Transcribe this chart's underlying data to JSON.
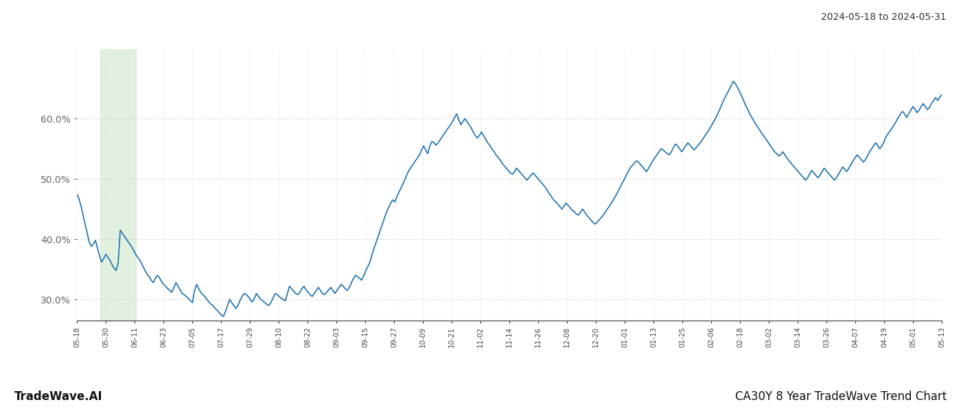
{
  "title_top_right": "2024-05-18 to 2024-05-31",
  "title_bottom_left": "TradeWave.AI",
  "title_bottom_right": "CA30Y 8 Year TradeWave Trend Chart",
  "line_color": "#1a6faf",
  "highlight_color": "#d6ecd2",
  "highlight_alpha": 0.7,
  "background_color": "#ffffff",
  "grid_color": "#cccccc",
  "ylim": [
    0.265,
    0.715
  ],
  "yticks": [
    0.3,
    0.4,
    0.5,
    0.6
  ],
  "x_labels": [
    "05-18",
    "05-30",
    "06-11",
    "06-23",
    "07-05",
    "07-17",
    "07-29",
    "08-10",
    "08-22",
    "09-03",
    "09-15",
    "09-27",
    "10-09",
    "10-21",
    "11-02",
    "11-14",
    "11-26",
    "12-08",
    "12-20",
    "01-01",
    "01-13",
    "01-25",
    "02-06",
    "02-18",
    "03-02",
    "03-14",
    "03-26",
    "04-07",
    "04-19",
    "05-01",
    "05-13"
  ],
  "highlight_xstart": 0.027,
  "highlight_xend": 0.068,
  "n_points": 420,
  "y_values": [
    0.474,
    0.468,
    0.455,
    0.44,
    0.425,
    0.41,
    0.395,
    0.388,
    0.392,
    0.398,
    0.385,
    0.372,
    0.362,
    0.368,
    0.375,
    0.37,
    0.365,
    0.358,
    0.352,
    0.348,
    0.36,
    0.415,
    0.41,
    0.405,
    0.4,
    0.395,
    0.39,
    0.385,
    0.378,
    0.372,
    0.368,
    0.362,
    0.355,
    0.348,
    0.342,
    0.338,
    0.332,
    0.328,
    0.335,
    0.34,
    0.336,
    0.33,
    0.325,
    0.322,
    0.318,
    0.315,
    0.312,
    0.32,
    0.328,
    0.322,
    0.316,
    0.31,
    0.308,
    0.305,
    0.302,
    0.298,
    0.295,
    0.315,
    0.325,
    0.318,
    0.312,
    0.308,
    0.305,
    0.3,
    0.296,
    0.292,
    0.29,
    0.285,
    0.282,
    0.278,
    0.274,
    0.272,
    0.28,
    0.29,
    0.3,
    0.295,
    0.29,
    0.285,
    0.29,
    0.298,
    0.305,
    0.31,
    0.308,
    0.305,
    0.3,
    0.296,
    0.302,
    0.31,
    0.305,
    0.3,
    0.298,
    0.295,
    0.292,
    0.29,
    0.295,
    0.302,
    0.31,
    0.308,
    0.305,
    0.302,
    0.3,
    0.298,
    0.31,
    0.322,
    0.318,
    0.314,
    0.31,
    0.308,
    0.312,
    0.318,
    0.322,
    0.316,
    0.312,
    0.308,
    0.305,
    0.31,
    0.315,
    0.32,
    0.315,
    0.31,
    0.308,
    0.312,
    0.316,
    0.32,
    0.315,
    0.31,
    0.315,
    0.32,
    0.325,
    0.322,
    0.318,
    0.315,
    0.32,
    0.328,
    0.335,
    0.34,
    0.338,
    0.335,
    0.332,
    0.34,
    0.348,
    0.355,
    0.362,
    0.375,
    0.385,
    0.395,
    0.405,
    0.415,
    0.425,
    0.435,
    0.445,
    0.452,
    0.46,
    0.465,
    0.462,
    0.47,
    0.478,
    0.485,
    0.492,
    0.5,
    0.508,
    0.515,
    0.52,
    0.525,
    0.53,
    0.535,
    0.54,
    0.548,
    0.555,
    0.548,
    0.542,
    0.555,
    0.562,
    0.56,
    0.556,
    0.56,
    0.565,
    0.57,
    0.575,
    0.58,
    0.585,
    0.59,
    0.595,
    0.602,
    0.608,
    0.598,
    0.59,
    0.595,
    0.6,
    0.595,
    0.59,
    0.585,
    0.578,
    0.572,
    0.568,
    0.572,
    0.578,
    0.572,
    0.566,
    0.56,
    0.556,
    0.55,
    0.546,
    0.54,
    0.536,
    0.532,
    0.526,
    0.522,
    0.518,
    0.514,
    0.51,
    0.508,
    0.512,
    0.518,
    0.514,
    0.51,
    0.506,
    0.502,
    0.498,
    0.502,
    0.506,
    0.51,
    0.506,
    0.502,
    0.498,
    0.494,
    0.49,
    0.486,
    0.48,
    0.475,
    0.47,
    0.465,
    0.462,
    0.458,
    0.454,
    0.45,
    0.455,
    0.46,
    0.456,
    0.452,
    0.448,
    0.445,
    0.442,
    0.44,
    0.445,
    0.45,
    0.445,
    0.44,
    0.436,
    0.432,
    0.428,
    0.425,
    0.428,
    0.432,
    0.436,
    0.44,
    0.445,
    0.45,
    0.455,
    0.46,
    0.466,
    0.472,
    0.478,
    0.485,
    0.492,
    0.498,
    0.505,
    0.512,
    0.518,
    0.522,
    0.526,
    0.53,
    0.528,
    0.524,
    0.52,
    0.516,
    0.512,
    0.518,
    0.524,
    0.53,
    0.535,
    0.54,
    0.545,
    0.55,
    0.548,
    0.545,
    0.542,
    0.54,
    0.545,
    0.552,
    0.558,
    0.555,
    0.55,
    0.545,
    0.55,
    0.555,
    0.56,
    0.556,
    0.552,
    0.548,
    0.552,
    0.556,
    0.56,
    0.565,
    0.57,
    0.575,
    0.58,
    0.586,
    0.592,
    0.598,
    0.605,
    0.612,
    0.62,
    0.628,
    0.635,
    0.642,
    0.648,
    0.655,
    0.662,
    0.658,
    0.652,
    0.645,
    0.638,
    0.63,
    0.622,
    0.615,
    0.608,
    0.602,
    0.596,
    0.59,
    0.585,
    0.58,
    0.575,
    0.57,
    0.565,
    0.56,
    0.555,
    0.55,
    0.545,
    0.542,
    0.538,
    0.54,
    0.545,
    0.54,
    0.535,
    0.53,
    0.526,
    0.522,
    0.518,
    0.514,
    0.51,
    0.506,
    0.502,
    0.498,
    0.502,
    0.508,
    0.514,
    0.51,
    0.506,
    0.502,
    0.506,
    0.512,
    0.518,
    0.514,
    0.51,
    0.506,
    0.502,
    0.498,
    0.502,
    0.508,
    0.514,
    0.52,
    0.516,
    0.512,
    0.518,
    0.524,
    0.53,
    0.535,
    0.54,
    0.536,
    0.532,
    0.528,
    0.532,
    0.538,
    0.545,
    0.55,
    0.555,
    0.56,
    0.555,
    0.55,
    0.555,
    0.562,
    0.57,
    0.575,
    0.58,
    0.585,
    0.59,
    0.596,
    0.602,
    0.608,
    0.612,
    0.608,
    0.602,
    0.608,
    0.614,
    0.62,
    0.616,
    0.61,
    0.614,
    0.62,
    0.625,
    0.62,
    0.615,
    0.618,
    0.625,
    0.63,
    0.635,
    0.63,
    0.635,
    0.64
  ]
}
